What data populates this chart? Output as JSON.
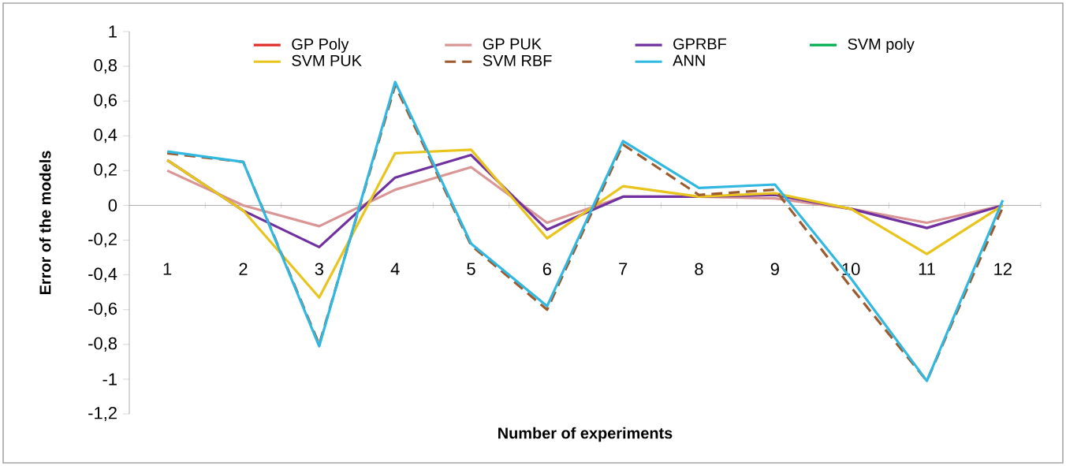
{
  "chart_data": {
    "type": "line",
    "xlabel": "Number of experiments",
    "ylabel": "Error of the models",
    "categories": [
      "1",
      "2",
      "3",
      "4",
      "5",
      "6",
      "7",
      "8",
      "9",
      "10",
      "11",
      "12"
    ],
    "series": [
      {
        "name": "GP Poly",
        "color": "#e0302a",
        "values": [
          null,
          null,
          null,
          null,
          null,
          null,
          null,
          null,
          null,
          null,
          null,
          null
        ]
      },
      {
        "name": "GP PUK",
        "color": "#d99694",
        "values": [
          0.2,
          0.0,
          -0.12,
          0.09,
          0.22,
          -0.1,
          0.05,
          0.05,
          0.04,
          -0.02,
          -0.1,
          0.0
        ]
      },
      {
        "name": "GPRBF",
        "color": "#7030a0",
        "values": [
          0.26,
          -0.03,
          -0.24,
          0.16,
          0.29,
          -0.14,
          0.05,
          0.05,
          0.06,
          -0.02,
          -0.13,
          0.0
        ]
      },
      {
        "name": "SVM poly",
        "color": "#00b050",
        "values": [
          null,
          null,
          null,
          null,
          null,
          null,
          null,
          null,
          null,
          null,
          null,
          null
        ]
      },
      {
        "name": "SVM PUK",
        "color": "#e8c41c",
        "values": [
          0.26,
          -0.03,
          -0.53,
          0.3,
          0.32,
          -0.19,
          0.11,
          0.05,
          0.07,
          -0.02,
          -0.28,
          0.0
        ]
      },
      {
        "name": "SVM RBF",
        "color": "#9c5a2f",
        "line_style": "dashed",
        "values": [
          0.3,
          0.25,
          -0.8,
          0.69,
          -0.23,
          -0.6,
          0.35,
          0.06,
          0.09,
          -0.47,
          -1.01,
          -0.01
        ]
      },
      {
        "name": "ANN",
        "color": "#31b8e0",
        "values": [
          0.31,
          0.25,
          -0.81,
          0.71,
          -0.22,
          -0.58,
          0.37,
          0.1,
          0.12,
          -0.42,
          -1.01,
          0.03
        ]
      }
    ],
    "ylim": [
      -1.2,
      1
    ],
    "yticks": [
      {
        "value": -1.2,
        "label": "-1,2"
      },
      -1,
      {
        "value": -0.8,
        "label": "-0,8"
      },
      {
        "value": -0.6,
        "label": "-0,6"
      },
      {
        "value": -0.4,
        "label": "-0,4"
      },
      {
        "value": -0.2,
        "label": "-0,2"
      },
      0,
      {
        "value": 0.2,
        "label": "0,2"
      },
      {
        "value": 0.4,
        "label": "0,4"
      },
      {
        "value": 0.6,
        "label": "0,6"
      },
      {
        "value": 0.8,
        "label": "0,8"
      },
      1
    ],
    "legend": "top",
    "marker": "none"
  }
}
